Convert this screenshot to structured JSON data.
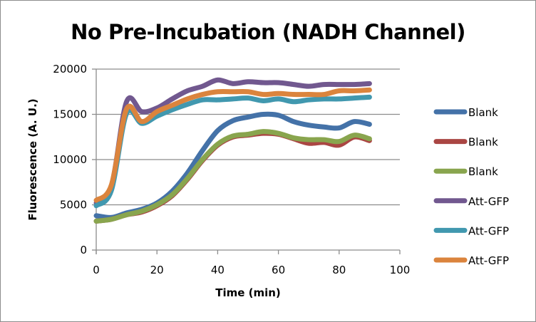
{
  "chart_data": {
    "type": "line",
    "title": "No Pre-Incubation (NADH Channel)",
    "xlabel": "Time (min)",
    "ylabel": "Fluorescence (A. U.)",
    "xlim": [
      0,
      100
    ],
    "ylim": [
      0,
      20000
    ],
    "xticks": [
      0,
      20,
      40,
      60,
      80,
      100
    ],
    "yticks": [
      0,
      5000,
      10000,
      15000,
      20000
    ],
    "grid": "horizontal",
    "legend_position": "right",
    "x": [
      0,
      5,
      10,
      15,
      20,
      25,
      30,
      35,
      40,
      45,
      50,
      55,
      60,
      65,
      70,
      75,
      80,
      85,
      90
    ],
    "series": [
      {
        "name": "Blank",
        "color": "#4472a8",
        "values": [
          3800,
          3600,
          4100,
          4500,
          5200,
          6500,
          8500,
          11000,
          13200,
          14300,
          14700,
          15000,
          14900,
          14200,
          13800,
          13600,
          13500,
          14200,
          13900
        ]
      },
      {
        "name": "Blank",
        "color": "#aa4643",
        "values": [
          3200,
          3400,
          3900,
          4200,
          4900,
          6000,
          7800,
          9900,
          11600,
          12500,
          12700,
          12900,
          12800,
          12300,
          11800,
          11900,
          11600,
          12500,
          12100
        ]
      },
      {
        "name": "Blank",
        "color": "#89a54e",
        "values": [
          3200,
          3400,
          3900,
          4300,
          5000,
          6100,
          7900,
          10000,
          11700,
          12600,
          12800,
          13100,
          12900,
          12400,
          12200,
          12200,
          12000,
          12700,
          12300
        ]
      },
      {
        "name": "Att-GFP",
        "color": "#71588f",
        "values": [
          5200,
          7000,
          16400,
          15300,
          15700,
          16700,
          17600,
          18100,
          18800,
          18400,
          18600,
          18500,
          18500,
          18300,
          18100,
          18300,
          18300,
          18300,
          18400
        ]
      },
      {
        "name": "Att-GFP",
        "color": "#4198af",
        "values": [
          4900,
          6600,
          15100,
          14000,
          14800,
          15500,
          16100,
          16600,
          16600,
          16700,
          16800,
          16500,
          16700,
          16400,
          16600,
          16700,
          16700,
          16800,
          16900
        ]
      },
      {
        "name": "Att-GFP",
        "color": "#db843d",
        "values": [
          5500,
          7200,
          15600,
          14200,
          15300,
          16000,
          16700,
          17200,
          17500,
          17500,
          17500,
          17200,
          17300,
          17200,
          17200,
          17200,
          17600,
          17600,
          17700
        ]
      }
    ]
  }
}
